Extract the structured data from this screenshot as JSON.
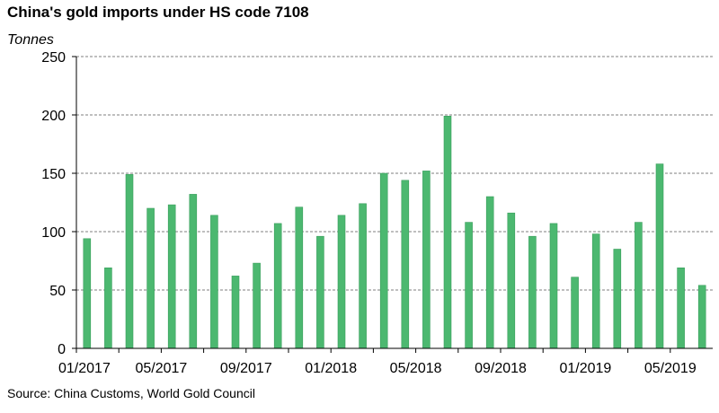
{
  "chart_data": {
    "type": "bar",
    "title": "China's gold imports under HS code 7108",
    "ylabel": "Tonnes",
    "xlabel": "",
    "source": "Source: China Customs, World Gold Council",
    "ylim": [
      0,
      250
    ],
    "yticks": [
      0,
      50,
      100,
      150,
      200,
      250
    ],
    "grid": "horizontal dashed",
    "x_tick_labels": [
      "01/2017",
      "05/2017",
      "09/2017",
      "01/2018",
      "05/2018",
      "09/2018",
      "01/2019",
      "05/2019"
    ],
    "categories": [
      "01/2017",
      "02/2017",
      "03/2017",
      "04/2017",
      "05/2017",
      "06/2017",
      "07/2017",
      "08/2017",
      "09/2017",
      "10/2017",
      "11/2017",
      "12/2017",
      "01/2018",
      "02/2018",
      "03/2018",
      "04/2018",
      "05/2018",
      "06/2018",
      "07/2018",
      "08/2018",
      "09/2018",
      "10/2018",
      "11/2018",
      "12/2018",
      "01/2019",
      "02/2019",
      "03/2019",
      "04/2019",
      "05/2019",
      "06/2019"
    ],
    "values": [
      94,
      69,
      149,
      120,
      123,
      132,
      114,
      62,
      73,
      107,
      121,
      96,
      114,
      124,
      150,
      144,
      152,
      199,
      108,
      130,
      116,
      96,
      107,
      61,
      98,
      85,
      108,
      158,
      69,
      54
    ],
    "colors": {
      "bar": "#4cb870",
      "bar_edge": "#3a9e5c",
      "grid": "#555555",
      "axis": "#000000"
    }
  }
}
